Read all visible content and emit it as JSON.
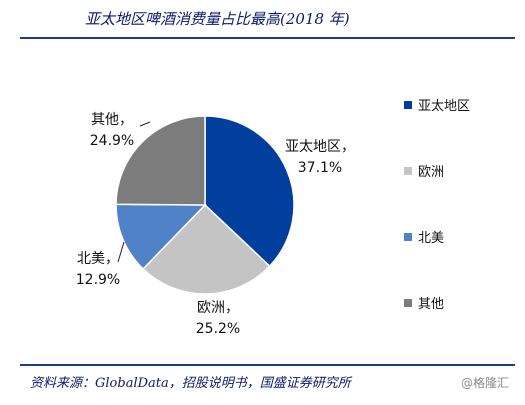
{
  "header": {
    "title": "亚太地区啤酒消费量占比最高(2018 年)"
  },
  "chart_data": {
    "type": "pie",
    "title": "亚太地区啤酒消费量占比最高(2018 年)",
    "unit": "%",
    "slices": [
      {
        "label": "亚太地区",
        "value": 37.1,
        "display": "37.1%",
        "color": "#003f9e"
      },
      {
        "label": "欧洲",
        "value": 25.2,
        "display": "25.2%",
        "color": "#c4c4c4"
      },
      {
        "label": "北美",
        "value": 12.9,
        "display": "12.9%",
        "color": "#4f82c6"
      },
      {
        "label": "其他",
        "value": 24.9,
        "display": "24.9%",
        "color": "#7c7c7c"
      }
    ],
    "legend_position": "right"
  },
  "footer": {
    "source": "资料来源：GlobalData，招股说明书，国盛证券研究所",
    "watermark": "@格隆汇"
  }
}
